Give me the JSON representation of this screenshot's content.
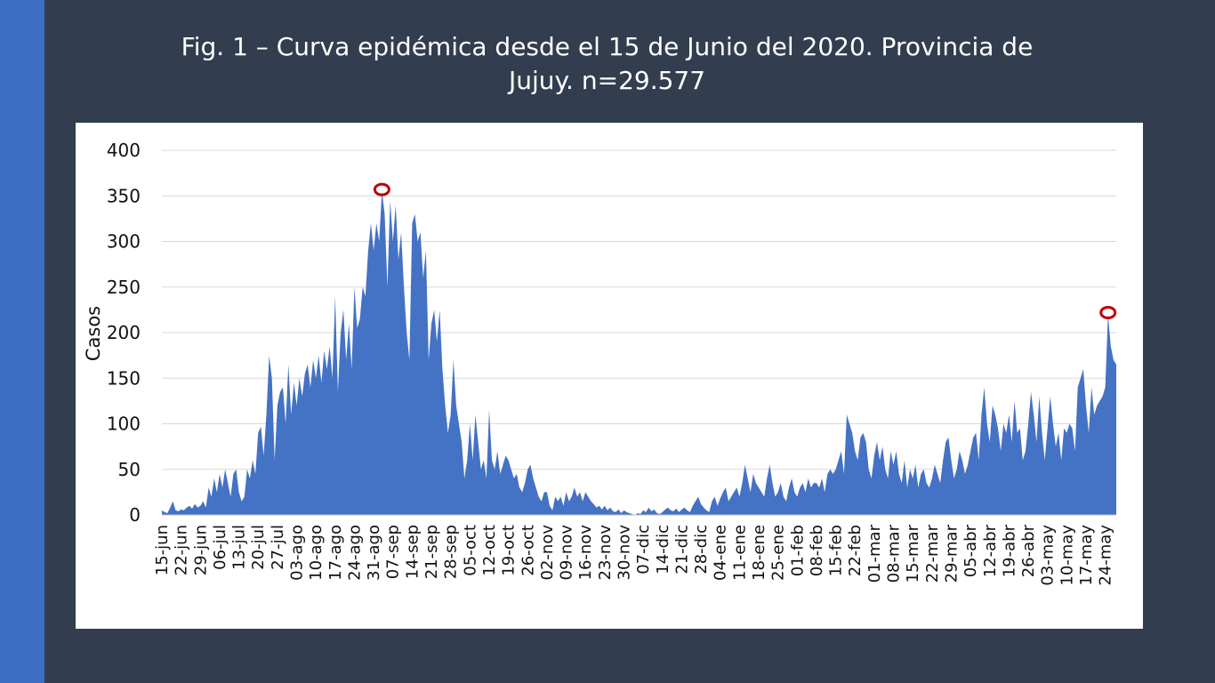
{
  "chart_data": {
    "type": "area",
    "title": "Fig. 1 – Curva epidémica desde el 15 de Junio del 2020. Provincia de Jujuy. n=29.577",
    "y_label": "Casos",
    "color": "#4472c4",
    "grid": true,
    "ylim": [
      0,
      400
    ],
    "yticks": [
      0,
      50,
      100,
      150,
      200,
      250,
      300,
      350,
      400
    ],
    "categories": [
      "15-jun",
      null,
      null,
      null,
      null,
      null,
      null,
      "22-jun",
      null,
      null,
      null,
      null,
      null,
      null,
      "29-jun",
      null,
      null,
      null,
      null,
      null,
      null,
      "06-jul",
      null,
      null,
      null,
      null,
      null,
      null,
      "13-jul",
      null,
      null,
      null,
      null,
      null,
      null,
      "20-jul",
      null,
      null,
      null,
      null,
      null,
      null,
      "27-jul",
      null,
      null,
      null,
      null,
      null,
      null,
      "03-ago",
      null,
      null,
      null,
      null,
      null,
      null,
      "10-ago",
      null,
      null,
      null,
      null,
      null,
      null,
      "17-ago",
      null,
      null,
      null,
      null,
      null,
      null,
      "24-ago",
      null,
      null,
      null,
      null,
      null,
      null,
      "31-ago",
      null,
      null,
      null,
      null,
      null,
      null,
      "07-sep",
      null,
      null,
      null,
      null,
      null,
      null,
      "14-sep",
      null,
      null,
      null,
      null,
      null,
      null,
      "21-sep",
      null,
      null,
      null,
      null,
      null,
      null,
      "28-sep",
      null,
      null,
      null,
      null,
      null,
      null,
      "05-oct",
      null,
      null,
      null,
      null,
      null,
      null,
      "12-oct",
      null,
      null,
      null,
      null,
      null,
      null,
      "19-oct",
      null,
      null,
      null,
      null,
      null,
      null,
      "26-oct",
      null,
      null,
      null,
      null,
      null,
      null,
      "02-nov",
      null,
      null,
      null,
      null,
      null,
      null,
      "09-nov",
      null,
      null,
      null,
      null,
      null,
      null,
      "16-nov",
      null,
      null,
      null,
      null,
      null,
      null,
      "23-nov",
      null,
      null,
      null,
      null,
      null,
      null,
      "30-nov",
      null,
      null,
      null,
      null,
      null,
      null,
      "07-dic",
      null,
      null,
      null,
      null,
      null,
      null,
      "14-dic",
      null,
      null,
      null,
      null,
      null,
      null,
      "21-dic",
      null,
      null,
      null,
      null,
      null,
      null,
      "28-dic",
      null,
      null,
      null,
      null,
      null,
      null,
      "04-ene",
      null,
      null,
      null,
      null,
      null,
      null,
      "11-ene",
      null,
      null,
      null,
      null,
      null,
      null,
      "18-ene",
      null,
      null,
      null,
      null,
      null,
      null,
      "25-ene",
      null,
      null,
      null,
      null,
      null,
      null,
      "01-feb",
      null,
      null,
      null,
      null,
      null,
      null,
      "08-feb",
      null,
      null,
      null,
      null,
      null,
      null,
      "15-feb",
      null,
      null,
      null,
      null,
      null,
      null,
      "22-feb",
      null,
      null,
      null,
      null,
      null,
      null,
      "01-mar",
      null,
      null,
      null,
      null,
      null,
      null,
      "08-mar",
      null,
      null,
      null,
      null,
      null,
      null,
      "15-mar",
      null,
      null,
      null,
      null,
      null,
      null,
      "22-mar",
      null,
      null,
      null,
      null,
      null,
      null,
      "29-mar",
      null,
      null,
      null,
      null,
      null,
      null,
      "05-abr",
      null,
      null,
      null,
      null,
      null,
      null,
      "12-abr",
      null,
      null,
      null,
      null,
      null,
      null,
      "19-abr",
      null,
      null,
      null,
      null,
      null,
      null,
      "26-abr",
      null,
      null,
      null,
      null,
      null,
      null,
      "03-may",
      null,
      null,
      null,
      null,
      null,
      null,
      "10-may",
      null,
      null,
      null,
      null,
      null,
      null,
      "17-may",
      null,
      null,
      null,
      null,
      null,
      null,
      "24-may",
      null,
      null,
      null,
      null
    ],
    "values": [
      5,
      3,
      2,
      8,
      15,
      5,
      4,
      6,
      5,
      8,
      10,
      7,
      12,
      8,
      10,
      15,
      8,
      30,
      20,
      40,
      25,
      45,
      30,
      50,
      35,
      20,
      45,
      50,
      25,
      15,
      20,
      50,
      40,
      60,
      45,
      90,
      97,
      65,
      110,
      175,
      150,
      60,
      120,
      135,
      140,
      100,
      165,
      110,
      145,
      120,
      150,
      130,
      155,
      165,
      140,
      170,
      150,
      175,
      145,
      180,
      160,
      185,
      150,
      240,
      135,
      200,
      225,
      170,
      210,
      160,
      250,
      205,
      215,
      250,
      240,
      290,
      320,
      290,
      320,
      300,
      355,
      330,
      250,
      345,
      300,
      340,
      280,
      310,
      250,
      200,
      170,
      320,
      330,
      300,
      310,
      260,
      290,
      170,
      210,
      225,
      190,
      225,
      160,
      120,
      90,
      110,
      170,
      120,
      100,
      80,
      40,
      60,
      100,
      60,
      110,
      80,
      50,
      60,
      40,
      115,
      60,
      50,
      70,
      45,
      55,
      65,
      60,
      50,
      40,
      45,
      30,
      25,
      35,
      50,
      55,
      40,
      30,
      20,
      15,
      25,
      25,
      10,
      5,
      20,
      15,
      20,
      10,
      25,
      15,
      20,
      30,
      20,
      25,
      15,
      25,
      20,
      15,
      12,
      8,
      10,
      6,
      10,
      5,
      8,
      4,
      3,
      6,
      2,
      5,
      3,
      2,
      1,
      0,
      2,
      1,
      5,
      3,
      8,
      4,
      6,
      2,
      1,
      3,
      6,
      8,
      5,
      4,
      7,
      3,
      6,
      8,
      5,
      3,
      10,
      15,
      20,
      12,
      8,
      5,
      3,
      15,
      20,
      10,
      18,
      25,
      30,
      15,
      20,
      25,
      30,
      20,
      35,
      55,
      40,
      25,
      45,
      35,
      30,
      25,
      20,
      40,
      55,
      35,
      20,
      25,
      35,
      20,
      15,
      30,
      40,
      25,
      20,
      30,
      35,
      25,
      40,
      30,
      35,
      35,
      30,
      40,
      25,
      45,
      50,
      45,
      50,
      60,
      70,
      45,
      110,
      100,
      90,
      70,
      60,
      85,
      90,
      80,
      50,
      40,
      65,
      80,
      60,
      75,
      50,
      40,
      70,
      55,
      70,
      45,
      35,
      60,
      30,
      50,
      40,
      55,
      30,
      45,
      50,
      35,
      30,
      40,
      55,
      45,
      35,
      60,
      80,
      85,
      60,
      40,
      50,
      70,
      60,
      45,
      55,
      70,
      85,
      90,
      60,
      110,
      140,
      100,
      80,
      120,
      110,
      95,
      70,
      100,
      90,
      110,
      80,
      125,
      90,
      95,
      60,
      70,
      100,
      135,
      110,
      80,
      130,
      90,
      60,
      95,
      130,
      100,
      75,
      90,
      60,
      95,
      90,
      100,
      95,
      70,
      140,
      150,
      160,
      120,
      90,
      140,
      110,
      120,
      125,
      130,
      140,
      220,
      185,
      170,
      165
    ]
  }
}
